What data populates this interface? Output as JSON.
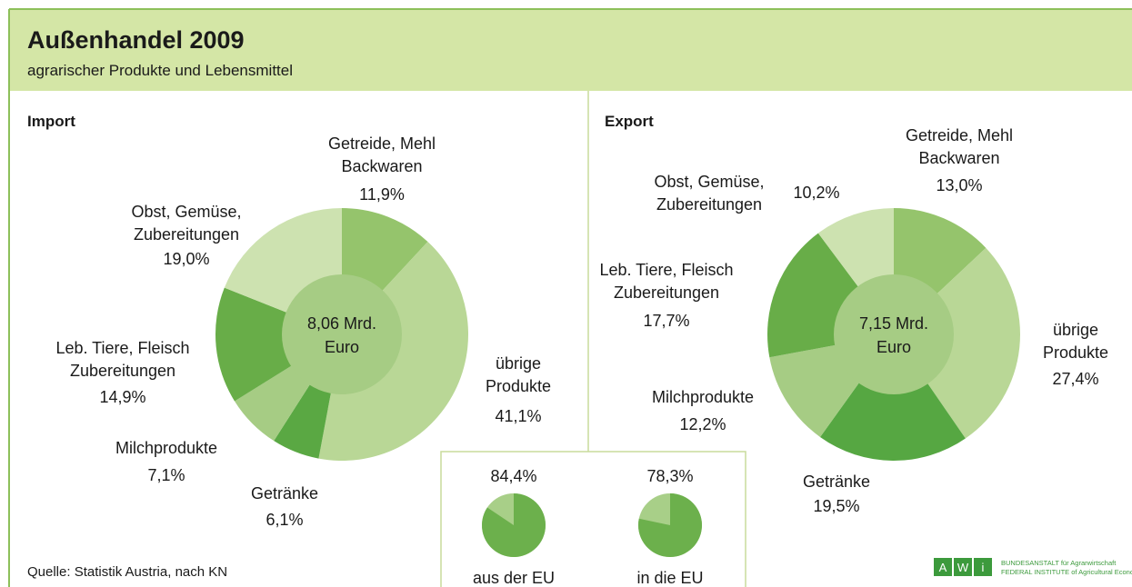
{
  "title": "Außenhandel 2009",
  "subtitle": "agrarischer Produkte und Lebensmittel",
  "source": "Quelle: Statistik Austria, nach KN",
  "logo": {
    "letters": [
      "A",
      "W",
      "i"
    ],
    "line1": "BUNDESANSTALT für Agrarwirtschaft",
    "line2": "FEDERAL INSTITUTE of Agricultural Economics"
  },
  "chart_data": [
    {
      "type": "donut",
      "title": "Import",
      "center_label": [
        "8,06 Mrd.",
        "Euro"
      ],
      "categories": [
        [
          "Getreide, Mehl",
          "Backwaren"
        ],
        [
          "übrige",
          "Produkte"
        ],
        [
          "Getränke"
        ],
        [
          "Milchprodukte"
        ],
        [
          "Leb. Tiere, Fleisch",
          "Zubereitungen"
        ],
        [
          "Obst, Gemüse,",
          "Zubereitungen"
        ]
      ],
      "values": [
        11.9,
        41.1,
        6.1,
        7.1,
        14.9,
        19.0
      ],
      "value_labels": [
        "11,9%",
        "41,1%",
        "6,1%",
        "7,1%",
        "14,9%",
        "19,0%"
      ],
      "colors": [
        "#95c46c",
        "#b9d796",
        "#5aa843",
        "#a6cc84",
        "#68ad48",
        "#cde2b0"
      ],
      "center_color": "#a6cc84"
    },
    {
      "type": "donut",
      "title": "Export",
      "center_label": [
        "7,15 Mrd.",
        "Euro"
      ],
      "categories": [
        [
          "Getreide, Mehl",
          "Backwaren"
        ],
        [
          "übrige",
          "Produkte"
        ],
        [
          "Getränke"
        ],
        [
          "Milchprodukte"
        ],
        [
          "Leb. Tiere, Fleisch",
          "Zubereitungen"
        ],
        [
          "Obst, Gemüse,",
          "Zubereitungen"
        ]
      ],
      "values": [
        13.0,
        27.4,
        19.5,
        12.2,
        17.7,
        10.2
      ],
      "value_labels": [
        "13,0%",
        "27,4%",
        "19,5%",
        "12,2%",
        "17,7%",
        "10,2%"
      ],
      "colors": [
        "#95c46c",
        "#b9d796",
        "#56a742",
        "#a6cc84",
        "#68ad48",
        "#cde2b0"
      ],
      "center_color": "#a6cc84"
    },
    {
      "type": "pie",
      "categories": [
        "aus der EU"
      ],
      "values": [
        84.4
      ],
      "value_labels": [
        "84,4%"
      ],
      "color": "#6cb04c",
      "rest_color": "#a8cf88"
    },
    {
      "type": "pie",
      "categories": [
        "in die EU"
      ],
      "values": [
        78.3
      ],
      "value_labels": [
        "78,3%"
      ],
      "color": "#6cb04c",
      "rest_color": "#a8cf88"
    }
  ]
}
